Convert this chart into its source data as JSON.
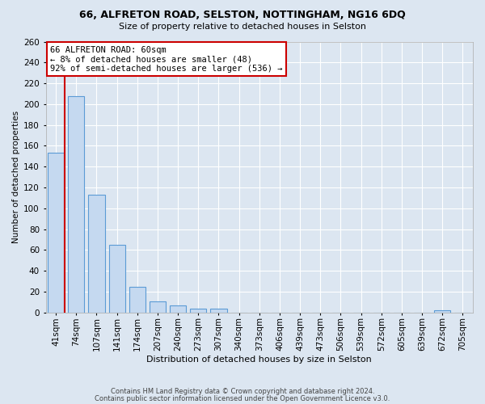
{
  "title1": "66, ALFRETON ROAD, SELSTON, NOTTINGHAM, NG16 6DQ",
  "title2": "Size of property relative to detached houses in Selston",
  "xlabel": "Distribution of detached houses by size in Selston",
  "ylabel": "Number of detached properties",
  "categories": [
    "41sqm",
    "74sqm",
    "107sqm",
    "141sqm",
    "174sqm",
    "207sqm",
    "240sqm",
    "273sqm",
    "307sqm",
    "340sqm",
    "373sqm",
    "406sqm",
    "439sqm",
    "473sqm",
    "506sqm",
    "539sqm",
    "572sqm",
    "605sqm",
    "639sqm",
    "672sqm",
    "705sqm"
  ],
  "values": [
    153,
    208,
    113,
    65,
    25,
    11,
    7,
    4,
    4,
    0,
    0,
    0,
    0,
    0,
    0,
    0,
    0,
    0,
    0,
    2,
    0
  ],
  "bar_color": "#c5d9f0",
  "bar_edge_color": "#5b9bd5",
  "ylim": [
    0,
    260
  ],
  "annotation_title": "66 ALFRETON ROAD: 60sqm",
  "annotation_line1": "← 8% of detached houses are smaller (48)",
  "annotation_line2": "92% of semi-detached houses are larger (536) →",
  "annotation_box_color": "#ffffff",
  "annotation_box_edge_color": "#cc0000",
  "footer1": "Contains HM Land Registry data © Crown copyright and database right 2024.",
  "footer2": "Contains public sector information licensed under the Open Government Licence v3.0.",
  "background_color": "#dce6f1",
  "plot_background_color": "#dce6f1",
  "yticks": [
    0,
    20,
    40,
    60,
    80,
    100,
    120,
    140,
    160,
    180,
    200,
    220,
    240,
    260
  ]
}
